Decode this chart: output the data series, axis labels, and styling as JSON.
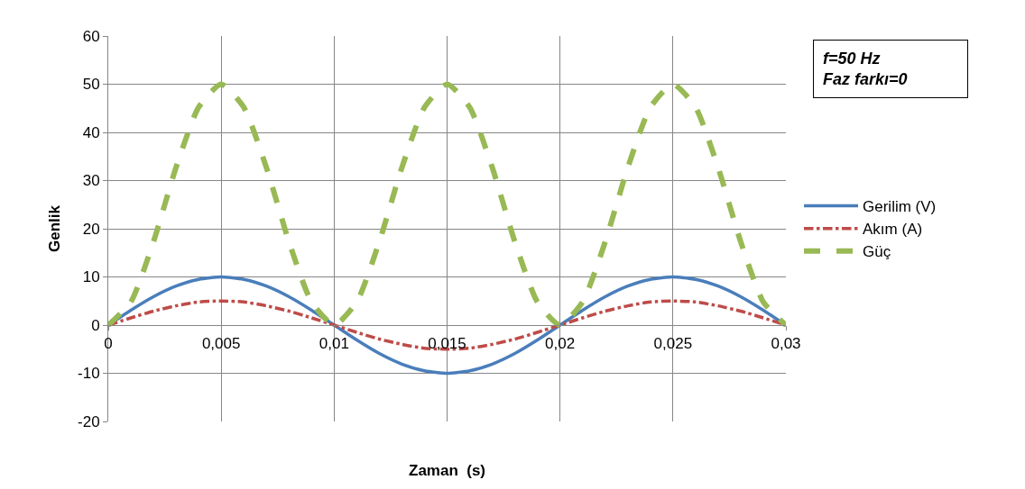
{
  "chart_data": {
    "type": "line",
    "xlabel": "Zaman  (s)",
    "ylabel": "Genlik",
    "x": [
      0,
      0.001,
      0.002,
      0.003,
      0.004,
      0.005,
      0.006,
      0.007,
      0.008,
      0.009,
      0.01,
      0.011,
      0.012,
      0.013,
      0.014,
      0.015,
      0.016,
      0.017,
      0.018,
      0.019,
      0.02,
      0.021,
      0.022,
      0.023,
      0.024,
      0.025,
      0.026,
      0.027,
      0.028,
      0.029,
      0.03
    ],
    "series": [
      {
        "name": "Gerilim (V)",
        "color": "#4a7ebb",
        "line_style": "solid",
        "values": [
          0,
          3.1,
          5.9,
          8.1,
          9.5,
          10,
          9.5,
          8.1,
          5.9,
          3.1,
          0,
          -3.1,
          -5.9,
          -8.1,
          -9.5,
          -10,
          -9.5,
          -8.1,
          -5.9,
          -3.1,
          0,
          3.1,
          5.9,
          8.1,
          9.5,
          10,
          9.5,
          8.1,
          5.9,
          3.1,
          0
        ]
      },
      {
        "name": "Akım (A)",
        "color": "#be4b48",
        "line_style": "dotted",
        "values": [
          0,
          1.5,
          2.9,
          4,
          4.8,
          5,
          4.8,
          4,
          2.9,
          1.5,
          0,
          -1.5,
          -2.9,
          -4,
          -4.8,
          -5,
          -4.8,
          -4,
          -2.9,
          -1.5,
          0,
          1.5,
          2.9,
          4,
          4.8,
          5,
          4.8,
          4,
          2.9,
          1.5,
          0
        ]
      },
      {
        "name": "Güç",
        "color": "#98b954",
        "line_style": "dashed",
        "values": [
          0,
          4.8,
          17.3,
          32.7,
          45.2,
          50,
          45.2,
          32.7,
          17.3,
          4.8,
          0,
          4.8,
          17.3,
          32.7,
          45.2,
          50,
          45.2,
          32.7,
          17.3,
          4.8,
          0,
          4.8,
          17.3,
          32.7,
          45.2,
          50,
          45.2,
          32.7,
          17.3,
          4.8,
          0
        ]
      }
    ],
    "xlim": [
      0,
      0.03
    ],
    "xticks": [
      0,
      {
        "value": 0.005,
        "label": "0,005"
      },
      {
        "value": 0.01,
        "label": "0,01"
      },
      {
        "value": 0.015,
        "label": "0,015"
      },
      {
        "value": 0.02,
        "label": "0,02"
      },
      {
        "value": 0.025,
        "label": "0,025"
      },
      {
        "value": 0.03,
        "label": "0,03"
      }
    ],
    "ylim": [
      -20,
      60
    ],
    "yticks": [
      -20,
      -10,
      0,
      10,
      20,
      30,
      40,
      50,
      60
    ],
    "grid": true,
    "legend": "right",
    "marker": "none",
    "annotations": [
      "f=50 Hz\nFaz farkı=0"
    ]
  }
}
